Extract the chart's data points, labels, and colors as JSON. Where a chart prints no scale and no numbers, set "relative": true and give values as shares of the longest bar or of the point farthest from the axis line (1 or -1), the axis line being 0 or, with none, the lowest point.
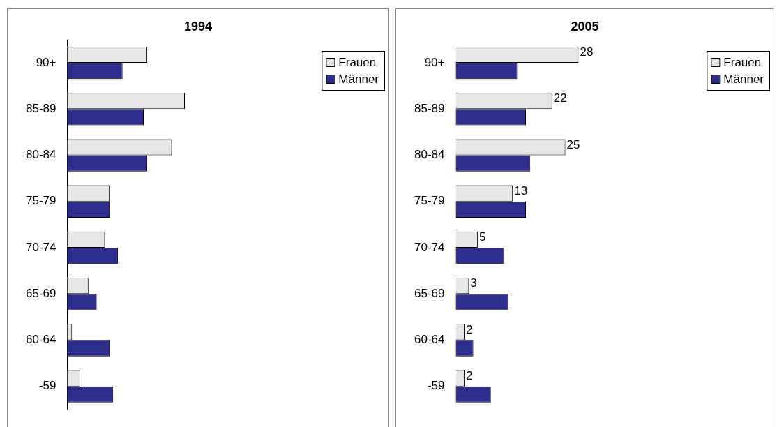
{
  "chart_data": [
    {
      "type": "bar",
      "orientation": "horizontal",
      "title": "1994",
      "relative": true,
      "legend": "top right",
      "tick_labels": "y",
      "categories": [
        "90+",
        "85-89",
        "80-84",
        "75-79",
        "70-74",
        "65-69",
        "60-64",
        "-59"
      ],
      "series": [
        {
          "name": "Frauen",
          "color": "#e6e6e6",
          "values": [
            0.68,
            1,
            0.89,
            0.36,
            0.32,
            0.18,
            0.04,
            0.11
          ]
        },
        {
          "name": "Männer",
          "color": "#2e2e8f",
          "values": [
            0.47,
            0.65,
            0.68,
            0.36,
            0.43,
            0.25,
            0.36,
            0.39
          ]
        }
      ]
    },
    {
      "type": "bar",
      "orientation": "horizontal",
      "title": "2005",
      "legend": "top right",
      "tick_labels": "y",
      "categories": [
        "90+",
        "85-89",
        "80-84",
        "75-79",
        "70-74",
        "65-69",
        "60-64",
        "-59"
      ],
      "series": [
        {
          "name": "Frauen",
          "color": "#e6e6e6",
          "values": [
            28,
            22,
            25,
            13,
            5,
            3,
            2,
            2
          ],
          "value_labels": [
            "28",
            "22",
            "25",
            "13",
            "5",
            "3",
            "2",
            "2"
          ]
        },
        {
          "name": "Männer",
          "color": "#2e2e8f",
          "values": [
            14,
            16,
            17,
            16,
            11,
            12,
            4,
            8
          ]
        }
      ]
    }
  ]
}
